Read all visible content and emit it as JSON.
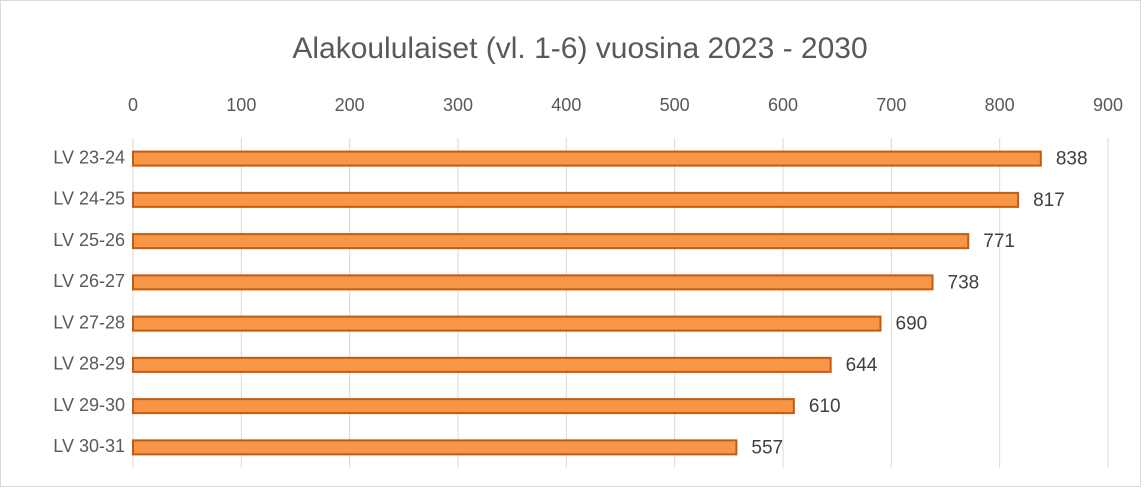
{
  "chart_data": {
    "type": "bar",
    "orientation": "horizontal",
    "title": "Alakoululaiset (vl. 1-6) vuosina 2023 - 2030",
    "categories": [
      "LV 23-24",
      "LV 24-25",
      "LV 25-26",
      "LV 26-27",
      "LV 27-28",
      "LV 28-29",
      "LV 29-30",
      "LV 30-31"
    ],
    "values": [
      838,
      817,
      771,
      738,
      690,
      644,
      610,
      557
    ],
    "color": "#f79646",
    "edge_color": "#c55a11",
    "xlim": [
      0,
      900
    ],
    "xticks": [
      0,
      100,
      200,
      300,
      400,
      500,
      600,
      700,
      800,
      900
    ],
    "grid": true
  }
}
